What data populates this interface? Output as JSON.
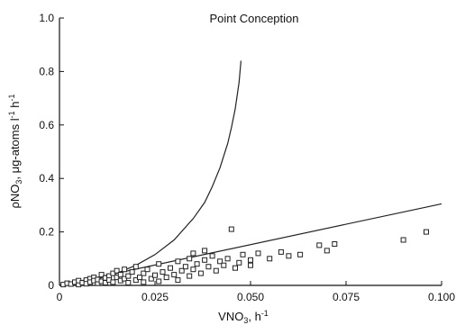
{
  "chart_data": {
    "type": "scatter",
    "title": "Point Conception",
    "xlabel": "VNO",
    "xlabel_sub": "3",
    "xlabel_suffix": ", h",
    "xlabel_sup": "-1",
    "ylabel": "ρNO",
    "ylabel_sub": "3",
    "ylabel_suffix": ", μg-atoms l",
    "ylabel_sup1": "-1",
    "ylabel_mid": " h",
    "ylabel_sup2": "-1",
    "xlim": [
      0,
      0.1
    ],
    "ylim": [
      0,
      1.0
    ],
    "xticks": [
      {
        "value": 0,
        "label": "0"
      },
      {
        "value": 0.025,
        "label": "0.025"
      },
      {
        "value": 0.05,
        "label": "0.050"
      },
      {
        "value": 0.075,
        "label": "0.075"
      },
      {
        "value": 0.1,
        "label": "0.100"
      }
    ],
    "yticks": [
      {
        "value": 0,
        "label": "0"
      },
      {
        "value": 0.2,
        "label": "0.2"
      },
      {
        "value": 0.4,
        "label": "0.4"
      },
      {
        "value": 0.6,
        "label": "0.6"
      },
      {
        "value": 0.8,
        "label": "0.8"
      },
      {
        "value": 1.0,
        "label": "1.0"
      }
    ],
    "grid": false,
    "legend": "none",
    "series": [
      {
        "marker": "open-square",
        "points": [
          [
            0.001,
            0.003
          ],
          [
            0.002,
            0.008
          ],
          [
            0.003,
            0.005
          ],
          [
            0.004,
            0.012
          ],
          [
            0.005,
            0.003
          ],
          [
            0.005,
            0.018
          ],
          [
            0.006,
            0.01
          ],
          [
            0.007,
            0.02
          ],
          [
            0.007,
            0.006
          ],
          [
            0.008,
            0.025
          ],
          [
            0.008,
            0.012
          ],
          [
            0.009,
            0.03
          ],
          [
            0.009,
            0.018
          ],
          [
            0.01,
            0.008
          ],
          [
            0.01,
            0.022
          ],
          [
            0.011,
            0.04
          ],
          [
            0.011,
            0.015
          ],
          [
            0.012,
            0.028
          ],
          [
            0.012,
            0.01
          ],
          [
            0.013,
            0.035
          ],
          [
            0.013,
            0.02
          ],
          [
            0.014,
            0.045
          ],
          [
            0.014,
            0.012
          ],
          [
            0.015,
            0.03
          ],
          [
            0.015,
            0.055
          ],
          [
            0.016,
            0.018
          ],
          [
            0.016,
            0.04
          ],
          [
            0.017,
            0.025
          ],
          [
            0.017,
            0.06
          ],
          [
            0.018,
            0.01
          ],
          [
            0.018,
            0.035
          ],
          [
            0.019,
            0.05
          ],
          [
            0.02,
            0.02
          ],
          [
            0.02,
            0.07
          ],
          [
            0.021,
            0.03
          ],
          [
            0.022,
            0.045
          ],
          [
            0.022,
            0.012
          ],
          [
            0.023,
            0.06
          ],
          [
            0.024,
            0.025
          ],
          [
            0.025,
            0.038
          ],
          [
            0.026,
            0.08
          ],
          [
            0.026,
            0.015
          ],
          [
            0.027,
            0.05
          ],
          [
            0.028,
            0.03
          ],
          [
            0.029,
            0.065
          ],
          [
            0.03,
            0.04
          ],
          [
            0.031,
            0.02
          ],
          [
            0.031,
            0.09
          ],
          [
            0.032,
            0.055
          ],
          [
            0.033,
            0.07
          ],
          [
            0.034,
            0.035
          ],
          [
            0.034,
            0.1
          ],
          [
            0.035,
            0.12
          ],
          [
            0.035,
            0.06
          ],
          [
            0.036,
            0.08
          ],
          [
            0.037,
            0.045
          ],
          [
            0.038,
            0.095
          ],
          [
            0.038,
            0.13
          ],
          [
            0.039,
            0.07
          ],
          [
            0.04,
            0.11
          ],
          [
            0.041,
            0.055
          ],
          [
            0.042,
            0.09
          ],
          [
            0.043,
            0.075
          ],
          [
            0.044,
            0.1
          ],
          [
            0.045,
            0.21
          ],
          [
            0.046,
            0.065
          ],
          [
            0.047,
            0.085
          ],
          [
            0.048,
            0.115
          ],
          [
            0.05,
            0.095
          ],
          [
            0.05,
            0.075
          ],
          [
            0.052,
            0.12
          ],
          [
            0.055,
            0.1
          ],
          [
            0.058,
            0.125
          ],
          [
            0.06,
            0.11
          ],
          [
            0.063,
            0.115
          ],
          [
            0.068,
            0.15
          ],
          [
            0.07,
            0.13
          ],
          [
            0.072,
            0.155
          ],
          [
            0.09,
            0.17
          ],
          [
            0.096,
            0.2
          ]
        ]
      }
    ],
    "lines": [
      {
        "shape": "curve",
        "points": [
          [
            0,
            0
          ],
          [
            0.005,
            0.01
          ],
          [
            0.01,
            0.025
          ],
          [
            0.015,
            0.045
          ],
          [
            0.02,
            0.075
          ],
          [
            0.025,
            0.115
          ],
          [
            0.03,
            0.17
          ],
          [
            0.035,
            0.25
          ],
          [
            0.038,
            0.31
          ],
          [
            0.04,
            0.37
          ],
          [
            0.042,
            0.44
          ],
          [
            0.044,
            0.53
          ],
          [
            0.045,
            0.59
          ],
          [
            0.046,
            0.66
          ],
          [
            0.047,
            0.76
          ],
          [
            0.0475,
            0.84
          ]
        ]
      },
      {
        "shape": "straight",
        "points": [
          [
            0,
            0
          ],
          [
            0.1,
            0.305
          ]
        ]
      }
    ]
  }
}
